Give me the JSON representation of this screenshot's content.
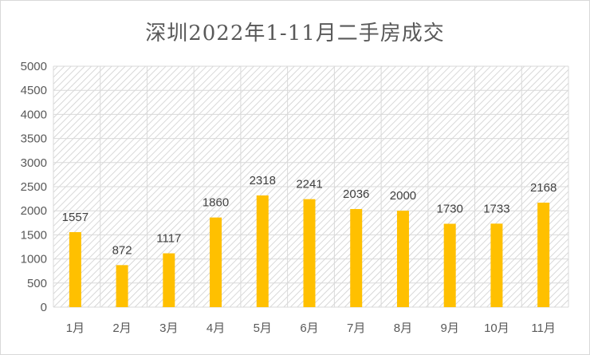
{
  "chart_data": {
    "type": "bar",
    "title": "深圳2022年1-11月二手房成交",
    "categories": [
      "1月",
      "2月",
      "3月",
      "4月",
      "5月",
      "6月",
      "7月",
      "8月",
      "9月",
      "10月",
      "11月"
    ],
    "values": [
      1557,
      872,
      1117,
      1860,
      2318,
      2241,
      2036,
      2000,
      1730,
      1733,
      2168
    ],
    "xlabel": "",
    "ylabel": "",
    "ylim": [
      0,
      5000
    ],
    "yticks": [
      0,
      500,
      1000,
      1500,
      2000,
      2500,
      3000,
      3500,
      4000,
      4500,
      5000
    ],
    "grid": true,
    "legend": "none",
    "colors": {
      "bar": "#FFC000",
      "grid": "#d9d9d9",
      "hatch": "#c8c8c8"
    }
  }
}
